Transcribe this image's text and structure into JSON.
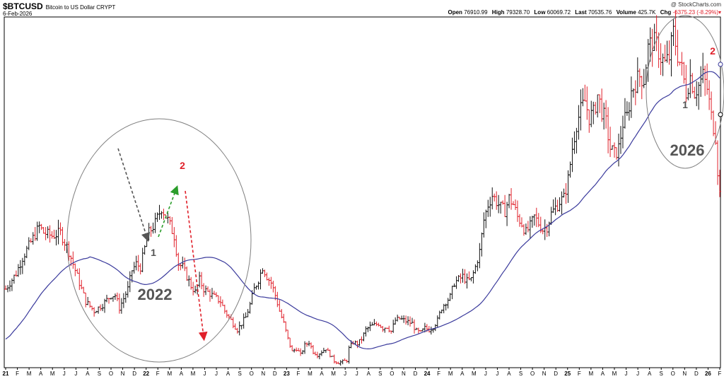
{
  "header": {
    "symbol": "$BTCUSD",
    "name": "Bitcoin to US Dollar",
    "exchange": "CRYPT",
    "date": "6-Feb-2026",
    "watermark": "@ StockCharts.com",
    "open_label": "Open",
    "open": "76910.99",
    "high_label": "High",
    "high": "79328.70",
    "low_label": "Low",
    "low": "60069.72",
    "last_label": "Last",
    "last": "70535.76",
    "volume_label": "Volume",
    "volume": "425.7K",
    "chg_label": "Chg",
    "chg": "-6375.23 (-8.29%)"
  },
  "colors": {
    "up": "#111111",
    "down": "#e0202a",
    "ma": "#3a3a9c",
    "circle": "#808080",
    "arrow_gray": "#555555",
    "arrow_green": "#2a9d2a",
    "arrow_red": "#e0202a",
    "label_gray": "#555555",
    "label_red": "#e0202a"
  },
  "annotations": {
    "year_2022": "2022",
    "year_2026": "2026",
    "num_1_left": "1",
    "num_2_left": "2",
    "num_1_right": "1",
    "num_2_right": "2"
  },
  "chart_data": {
    "type": "ohlc weekly bars with moving average",
    "x_axis_ticks": [
      "21",
      "F",
      "M",
      "A",
      "M",
      "J",
      "J",
      "A",
      "S",
      "O",
      "N",
      "D",
      "22",
      "F",
      "M",
      "A",
      "M",
      "J",
      "J",
      "A",
      "S",
      "O",
      "N",
      "D",
      "23",
      "F",
      "M",
      "A",
      "M",
      "J",
      "J",
      "A",
      "S",
      "O",
      "N",
      "D",
      "24",
      "F",
      "M",
      "A",
      "M",
      "J",
      "J",
      "A",
      "S",
      "O",
      "N",
      "D",
      "25",
      "F",
      "M",
      "A",
      "M",
      "J",
      "J",
      "A",
      "S",
      "O",
      "N",
      "D",
      "26",
      "F"
    ],
    "year_ticks": [
      "21",
      "22",
      "23",
      "24",
      "25",
      "26"
    ],
    "anchors": [
      [
        0,
        40000
      ],
      [
        5,
        45000
      ],
      [
        8,
        50000
      ],
      [
        12,
        55000
      ],
      [
        16,
        60000
      ],
      [
        18,
        58000
      ],
      [
        22,
        57000
      ],
      [
        26,
        58000
      ],
      [
        30,
        52000
      ],
      [
        34,
        44000
      ],
      [
        38,
        36000
      ],
      [
        42,
        33000
      ],
      [
        46,
        35000
      ],
      [
        50,
        38000
      ],
      [
        52,
        38000
      ],
      [
        54,
        34000
      ],
      [
        58,
        40000
      ],
      [
        60,
        46000
      ],
      [
        62,
        48000
      ],
      [
        64,
        47000
      ],
      [
        66,
        53000
      ],
      [
        68,
        58000
      ],
      [
        71,
        61000
      ],
      [
        74,
        66000
      ],
      [
        77,
        62000
      ],
      [
        80,
        57000
      ],
      [
        82,
        48000
      ],
      [
        84,
        47000
      ],
      [
        86,
        44000
      ],
      [
        88,
        41000
      ],
      [
        90,
        39000
      ],
      [
        92,
        43000
      ],
      [
        94,
        40000
      ],
      [
        96,
        39000
      ],
      [
        98,
        38000
      ],
      [
        100,
        37000
      ],
      [
        102,
        36000
      ],
      [
        104,
        33000
      ],
      [
        106,
        31000
      ],
      [
        108,
        29000
      ],
      [
        110,
        27000
      ],
      [
        112,
        29000
      ],
      [
        114,
        31000
      ],
      [
        116,
        35000
      ],
      [
        118,
        40000
      ],
      [
        120,
        43000
      ],
      [
        122,
        47000
      ],
      [
        124,
        44000
      ],
      [
        126,
        42000
      ],
      [
        128,
        38000
      ],
      [
        130,
        33000
      ],
      [
        132,
        29000
      ],
      [
        134,
        24000
      ],
      [
        136,
        20000
      ],
      [
        138,
        21000
      ],
      [
        140,
        19000
      ],
      [
        142,
        22000
      ],
      [
        144,
        23000
      ],
      [
        146,
        20000
      ],
      [
        148,
        19000
      ],
      [
        150,
        20000
      ],
      [
        152,
        21000
      ],
      [
        154,
        19000
      ],
      [
        156,
        17000
      ],
      [
        158,
        16500
      ],
      [
        160,
        16800
      ],
      [
        162,
        17200
      ],
      [
        163,
        21000
      ],
      [
        165,
        23000
      ],
      [
        167,
        22500
      ],
      [
        169,
        24000
      ],
      [
        171,
        27000
      ],
      [
        173,
        28000
      ],
      [
        175,
        28500
      ],
      [
        177,
        29000
      ],
      [
        179,
        27500
      ],
      [
        181,
        28000
      ],
      [
        183,
        26500
      ],
      [
        185,
        30000
      ],
      [
        187,
        30500
      ],
      [
        189,
        30000
      ],
      [
        191,
        29500
      ],
      [
        193,
        29000
      ],
      [
        195,
        26500
      ],
      [
        197,
        26000
      ],
      [
        199,
        27500
      ],
      [
        201,
        27000
      ],
      [
        203,
        28000
      ],
      [
        205,
        30000
      ],
      [
        207,
        34000
      ],
      [
        209,
        36000
      ],
      [
        211,
        37500
      ],
      [
        213,
        42000
      ],
      [
        215,
        43000
      ],
      [
        217,
        44000
      ],
      [
        219,
        42500
      ],
      [
        221,
        43000
      ],
      [
        223,
        47000
      ],
      [
        225,
        52000
      ],
      [
        227,
        62000
      ],
      [
        229,
        67000
      ],
      [
        231,
        70000
      ],
      [
        233,
        68000
      ],
      [
        235,
        66000
      ],
      [
        237,
        65000
      ],
      [
        239,
        69000
      ],
      [
        241,
        67000
      ],
      [
        243,
        63000
      ],
      [
        245,
        61000
      ],
      [
        247,
        58000
      ],
      [
        249,
        60000
      ],
      [
        251,
        63000
      ],
      [
        253,
        61000
      ],
      [
        255,
        59000
      ],
      [
        257,
        60000
      ],
      [
        259,
        64000
      ],
      [
        261,
        66000
      ],
      [
        263,
        68000
      ],
      [
        265,
        69000
      ],
      [
        267,
        75000
      ],
      [
        269,
        85000
      ],
      [
        271,
        93000
      ],
      [
        273,
        97000
      ],
      [
        275,
        100000
      ],
      [
        277,
        95000
      ],
      [
        279,
        96000
      ],
      [
        281,
        102000
      ],
      [
        283,
        97000
      ],
      [
        285,
        93000
      ],
      [
        287,
        85000
      ],
      [
        289,
        83000
      ],
      [
        291,
        85000
      ],
      [
        293,
        93000
      ],
      [
        295,
        95000
      ],
      [
        297,
        103000
      ],
      [
        299,
        106000
      ],
      [
        301,
        108000
      ],
      [
        303,
        107000
      ],
      [
        305,
        117000
      ],
      [
        307,
        119000
      ],
      [
        309,
        118000
      ],
      [
        311,
        114000
      ],
      [
        313,
        112000
      ],
      [
        315,
        114000
      ],
      [
        317,
        122000
      ],
      [
        319,
        115000
      ],
      [
        321,
        110000
      ],
      [
        323,
        103000
      ],
      [
        325,
        108000
      ],
      [
        327,
        103000
      ],
      [
        329,
        105000
      ],
      [
        331,
        108000
      ],
      [
        333,
        104000
      ],
      [
        335,
        95000
      ],
      [
        337,
        89000
      ],
      [
        338,
        78000
      ],
      [
        339,
        70500
      ]
    ],
    "price_range": [
      16000,
      126000
    ],
    "ma_weeks": 40
  }
}
